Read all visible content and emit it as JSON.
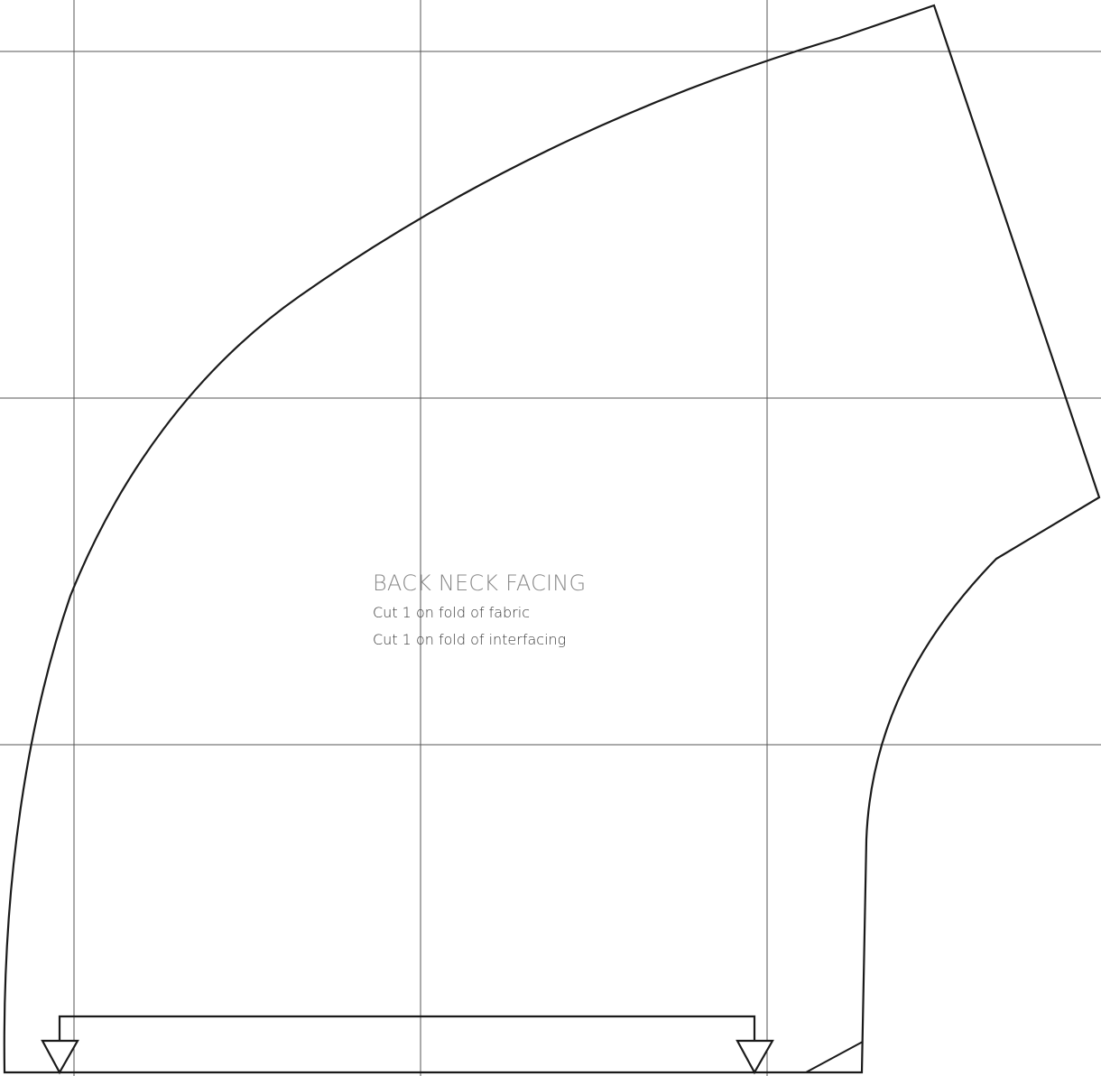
{
  "pattern_piece": {
    "title": "BACK NECK FACING",
    "instructions": [
      "Cut 1 on fold of fabric",
      "Cut 1 on fold of interfacing"
    ]
  },
  "colors": {
    "grid_line": "#555555",
    "outline": "#1a1a1a",
    "title_text": "#8a8a8a",
    "instruction_text": "#3a3a3a",
    "background": "#ffffff"
  },
  "markers": {
    "grainline": "place-on-fold-bracket",
    "fold_arrows": "down-triangle-arrows"
  }
}
